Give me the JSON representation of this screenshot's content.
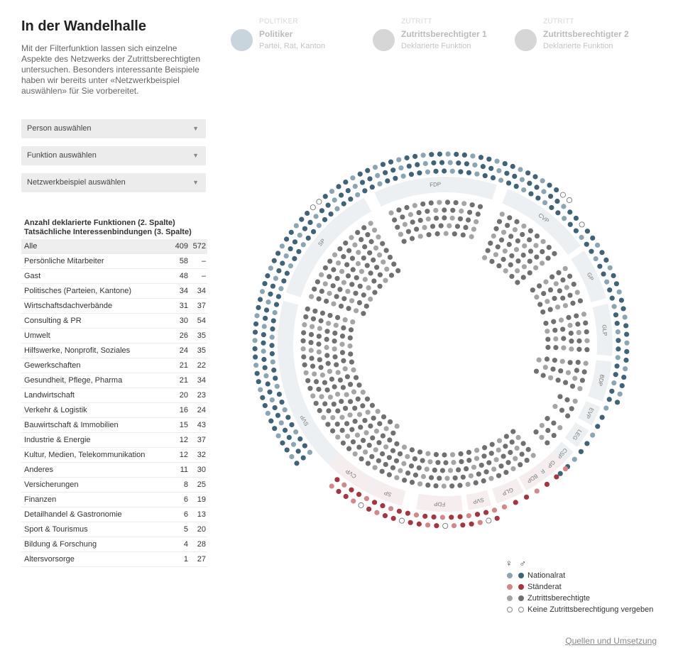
{
  "title": "In der Wandelhalle",
  "intro": "Mit der Filterfunktion lassen sich einzelne Aspekte des Netzwerks der Zutrittsberechtigten untersuchen. Besonders interessante Beispiele haben wir bereits unter «Netzwerkbeispiel auswählen» für Sie vorbereitet.",
  "dropdowns": {
    "person": "Person auswählen",
    "funktion": "Funktion auswählen",
    "netzwerk": "Netzwerkbeispiel auswählen",
    "caret": "▼"
  },
  "columns": [
    {
      "small": "POLITIKER",
      "big": "Politiker",
      "sub": "Partei, Rat, Kanton",
      "color": "#c9d5dd"
    },
    {
      "small": "ZUTRITT",
      "big": "Zutrittsberechtigter 1",
      "sub": "Deklarierte Funktion",
      "color": "#d6d6d6"
    },
    {
      "small": "ZUTRITT",
      "big": "Zutrittsberechtigter 2",
      "sub": "Deklarierte Funktion",
      "color": "#d6d6d6"
    }
  ],
  "table": {
    "heading1": "Anzahl deklarierte Funktionen (2. Spalte)",
    "heading2": "Tatsächliche Interessenbindungen (3. Spalte)",
    "rows": [
      {
        "label": "Alle",
        "c2": "409",
        "c3": "572"
      },
      {
        "label": "Persönliche Mitarbeiter",
        "c2": "58",
        "c3": "–"
      },
      {
        "label": "Gast",
        "c2": "48",
        "c3": "–"
      },
      {
        "label": "Politisches (Parteien, Kantone)",
        "c2": "34",
        "c3": "34"
      },
      {
        "label": "Wirtschaftsdachverbände",
        "c2": "31",
        "c3": "37"
      },
      {
        "label": "Consulting & PR",
        "c2": "30",
        "c3": "54"
      },
      {
        "label": "Umwelt",
        "c2": "26",
        "c3": "35"
      },
      {
        "label": "Hilfswerke, Nonprofit, Soziales",
        "c2": "24",
        "c3": "35"
      },
      {
        "label": "Gewerkschaften",
        "c2": "21",
        "c3": "22"
      },
      {
        "label": "Gesundheit, Pflege, Pharma",
        "c2": "21",
        "c3": "34"
      },
      {
        "label": "Landwirtschaft",
        "c2": "20",
        "c3": "23"
      },
      {
        "label": "Verkehr & Logistik",
        "c2": "16",
        "c3": "24"
      },
      {
        "label": "Bauwirtschaft & Immobilien",
        "c2": "15",
        "c3": "43"
      },
      {
        "label": "Industrie & Energie",
        "c2": "12",
        "c3": "37"
      },
      {
        "label": "Kultur, Medien, Telekommunikation",
        "c2": "12",
        "c3": "32"
      },
      {
        "label": "Anderes",
        "c2": "11",
        "c3": "30"
      },
      {
        "label": "Versicherungen",
        "c2": "8",
        "c3": "25"
      },
      {
        "label": "Finanzen",
        "c2": "6",
        "c3": "19"
      },
      {
        "label": "Detailhandel & Gastronomie",
        "c2": "6",
        "c3": "13"
      },
      {
        "label": "Sport & Tourismus",
        "c2": "5",
        "c3": "20"
      },
      {
        "label": "Bildung & Forschung",
        "c2": "4",
        "c3": "28"
      },
      {
        "label": "Altersvorsorge",
        "c2": "1",
        "c3": "27"
      }
    ]
  },
  "parties_nationalrat": [
    "SVP",
    "SP",
    "FDP",
    "CVP",
    "GP",
    "GLP",
    "BDP",
    "EVP",
    "LEG",
    "CSP",
    "MCR"
  ],
  "parties_staenderat": [
    "CVP",
    "SP",
    "FDP",
    "SVP",
    "GLP",
    "BDP",
    "GP"
  ],
  "legend": {
    "symbols": "♀ ♂",
    "items": [
      {
        "label": "Nationalrat",
        "female": "#8aa5b3",
        "male": "#3f6478",
        "hollow": false
      },
      {
        "label": "Ständerat",
        "female": "#d48787",
        "male": "#a8343f",
        "hollow": false
      },
      {
        "label": "Zutrittsberechtigte",
        "female": "#a5a5a5",
        "male": "#707070",
        "hollow": false
      },
      {
        "label": "Keine Zutrittsberechtigung vergeben",
        "female": "#888888",
        "male": "#888888",
        "hollow": true
      }
    ]
  },
  "footer_link": "Quellen und Umsetzung"
}
